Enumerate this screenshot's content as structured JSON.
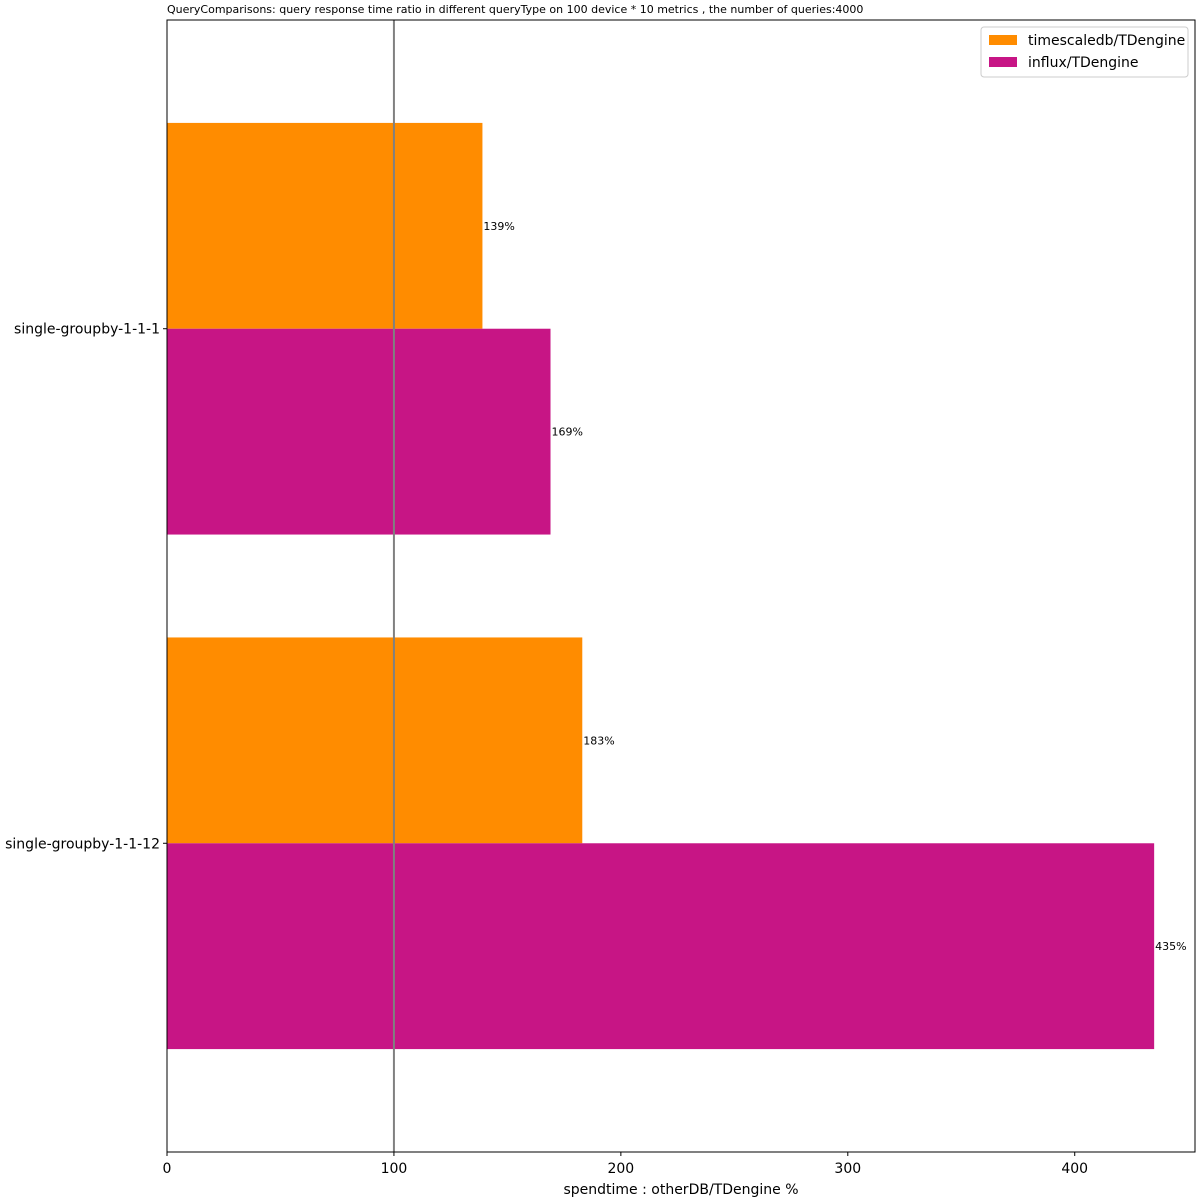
{
  "chart_data": {
    "type": "bar",
    "orientation": "horizontal",
    "title": "QueryComparisons: query response time ratio in different queryType on 100 device * 10 metrics , the number of queries:4000",
    "xlabel": "spendtime : otherDB/TDengine %",
    "ylabel": "",
    "categories": [
      "single-groupby-1-1-1",
      "single-groupby-1-1-12"
    ],
    "series": [
      {
        "name": "timescaledb/TDengine",
        "color": "#ff8c00",
        "values": [
          139,
          183
        ],
        "labels": [
          "139%",
          "183%"
        ]
      },
      {
        "name": "influx/TDengine",
        "color": "#c71585",
        "values": [
          169,
          435
        ],
        "labels": [
          "169%",
          "435%"
        ]
      }
    ],
    "xlim": [
      0,
      453
    ],
    "xticks": [
      0,
      100,
      200,
      300,
      400
    ],
    "xtick_labels": [
      "0",
      "100",
      "200",
      "300",
      "400"
    ],
    "reference_line": {
      "x": 100,
      "color": "#808080"
    },
    "legend_position": "top-right",
    "grid": false
  }
}
